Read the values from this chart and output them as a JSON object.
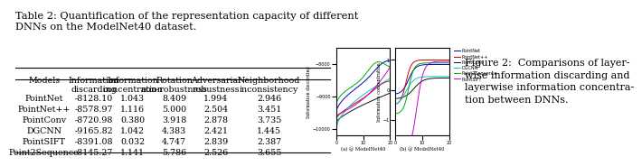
{
  "title": "Table 2: Quantification of the representation capacity of different\nDNNs on the ModelNet40 dataset.",
  "col_headers": [
    "Models",
    "Information\ndiscarding",
    "Information\nconcentration",
    "Rotation\nnon-robustness",
    "Adversarial\nrobustness",
    "Neighborhood\ninconsistency"
  ],
  "rows": [
    [
      "PointNet",
      "-8128.10",
      "1.043",
      "8.409",
      "1.994",
      "2.946"
    ],
    [
      "PointNet++",
      "-8578.97",
      "1.116",
      "5.000",
      "2.504",
      "3.451"
    ],
    [
      "PointConv",
      "-8720.98",
      "0.380",
      "3.918",
      "2.878",
      "3.735"
    ],
    [
      "DGCNN",
      "-9165.82",
      "1.042",
      "4.383",
      "2.421",
      "1.445"
    ],
    [
      "PointSIFT",
      "-8391.08",
      "0.032",
      "4.747",
      "2.839",
      "2.387"
    ],
    [
      "Point2Sequence",
      "-8145.27",
      "1.141",
      "5.786",
      "2.526",
      "3.655"
    ]
  ],
  "figure_caption": "Figure 2:  Comparisons of layer-\nwise information discarding and\nlayerwise information concentra-\ntion between DNNs.",
  "line_colors": [
    "#0000cc",
    "#cc0000",
    "#111111",
    "#00cccc",
    "#00aa00",
    "#cc00cc"
  ],
  "line_labels": [
    "PointNet",
    "PointNet++",
    "PointConv",
    "DGCNN",
    "Point2Sequence",
    "PointSIFT"
  ],
  "bg_color": "#ffffff",
  "table_font_size": 6.8,
  "title_font_size": 8.2,
  "caption_font_size": 8.0
}
